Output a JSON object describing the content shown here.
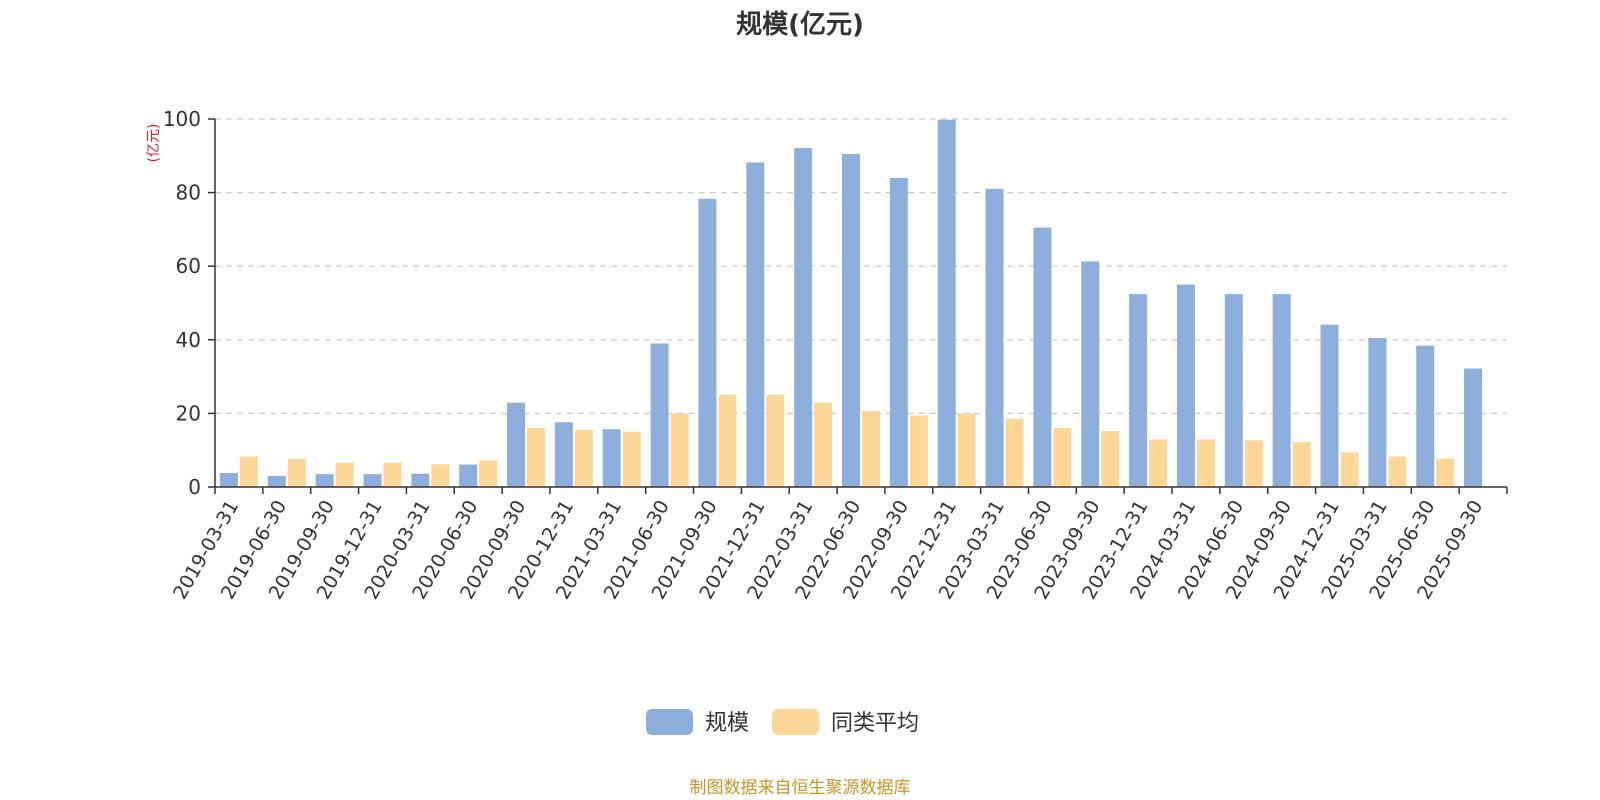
{
  "chart_data": {
    "type": "bar",
    "title": "规模(亿元)",
    "ylabel": "(亿元)",
    "xlabel": "",
    "ylim": [
      0,
      100
    ],
    "yticks": [
      0,
      20,
      40,
      60,
      80,
      100
    ],
    "grid": true,
    "legend_position": "bottom",
    "categories": [
      "2019-03-31",
      "2019-06-30",
      "2019-09-30",
      "2019-12-31",
      "2020-03-31",
      "2020-06-30",
      "2020-09-30",
      "2020-12-31",
      "2021-03-31",
      "2021-06-30",
      "2021-09-30",
      "2021-12-31",
      "2022-03-31",
      "2022-06-30",
      "2022-09-30",
      "2022-12-31",
      "2023-03-31",
      "2023-06-30",
      "2023-09-30",
      "2023-12-31",
      "2024-03-31",
      "2024-06-30",
      "2024-09-30",
      "2024-12-31",
      "2025-03-31",
      "2025-06-30",
      "2025-09-30"
    ],
    "series": [
      {
        "name": "规模",
        "color": "#8eaedb",
        "values": [
          3.8,
          3.0,
          3.5,
          3.5,
          3.6,
          6.1,
          22.9,
          17.6,
          15.7,
          39.0,
          78.3,
          88.2,
          92.1,
          90.5,
          84.0,
          99.8,
          81.0,
          70.5,
          61.3,
          52.4,
          55.0,
          52.4,
          52.4,
          44.1,
          40.5,
          38.4,
          32.2
        ]
      },
      {
        "name": "同类平均",
        "color": "#fdd798",
        "values": [
          8.3,
          7.6,
          6.6,
          6.6,
          6.2,
          7.2,
          16.0,
          15.5,
          15.0,
          20.0,
          25.0,
          25.0,
          22.9,
          20.6,
          19.4,
          20.0,
          18.5,
          16.0,
          15.2,
          12.9,
          12.9,
          12.7,
          12.2,
          9.4,
          8.3,
          7.7,
          null
        ]
      }
    ]
  },
  "source_text": "制图数据来自恒生聚源数据库",
  "colors": {
    "axis": "#333333",
    "grid": "#cccccc",
    "unit_label": "#e02020",
    "source": "#c8952a"
  }
}
